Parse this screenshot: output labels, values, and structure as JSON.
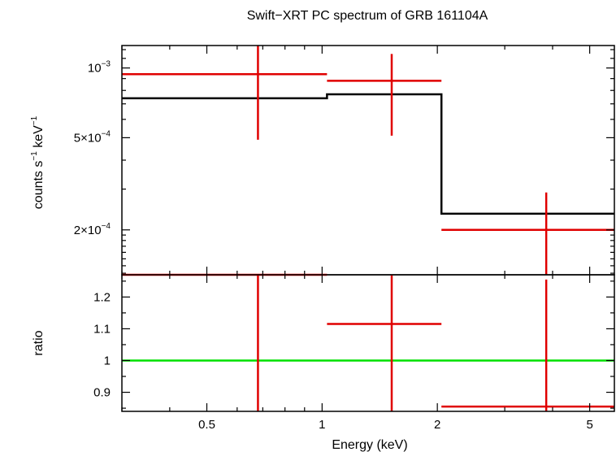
{
  "chart_data": {
    "title": "Swift−XRT PC spectrum of GRB 161104A",
    "x": {
      "label": "Energy (keV)",
      "scale": "log",
      "range": [
        0.3,
        5.8
      ],
      "ticks": [
        {
          "value": 0.5,
          "label": "0.5"
        },
        {
          "value": 1,
          "label": "1"
        },
        {
          "value": 2,
          "label": "2"
        },
        {
          "value": 5,
          "label": "5"
        }
      ]
    },
    "top_panel": {
      "type": "step + errorbar",
      "y_label": {
        "base": "counts s",
        "exp1": "−1",
        "mid": " keV",
        "exp2": "−1"
      },
      "y_scale": "log",
      "y_range": [
        0.000128,
        0.00125
      ],
      "y_ticks": [
        {
          "value": 0.001,
          "base": "10",
          "exp": "−3"
        },
        {
          "value": 0.0005,
          "base": "5×10",
          "exp": "−4"
        },
        {
          "value": 0.0002,
          "base": "2×10",
          "exp": "−4"
        }
      ],
      "data": [
        {
          "xlo": 0.3,
          "xhi": 1.03,
          "x": 0.68,
          "y": 0.00094,
          "ylo": 0.00049,
          "yhi": 0.00125
        },
        {
          "xlo": 1.03,
          "xhi": 2.05,
          "x": 1.52,
          "y": 0.00088,
          "ylo": 0.00051,
          "yhi": 0.00115
        },
        {
          "xlo": 2.05,
          "xhi": 5.8,
          "x": 3.85,
          "y": 0.0002,
          "ylo": 0.000128,
          "yhi": 0.00029
        }
      ],
      "model": [
        {
          "xlo": 0.3,
          "xhi": 1.03,
          "y": 0.00074
        },
        {
          "xlo": 1.03,
          "xhi": 2.05,
          "y": 0.00077
        },
        {
          "xlo": 2.05,
          "xhi": 5.8,
          "y": 0.000235
        }
      ]
    },
    "bottom_panel": {
      "type": "errorbar",
      "y_label": "ratio",
      "y_range": [
        0.84,
        1.27
      ],
      "y_ticks": [
        {
          "value": 0.9,
          "label": "0.9"
        },
        {
          "value": 1.0,
          "label": "1"
        },
        {
          "value": 1.1,
          "label": "1.1"
        },
        {
          "value": 1.2,
          "label": "1.2"
        }
      ],
      "reference_line": 1.0,
      "data": [
        {
          "xlo": 0.3,
          "xhi": 1.03,
          "x": 0.68,
          "y": 1.27,
          "ylo": 0.84,
          "yhi": 1.27
        },
        {
          "xlo": 1.03,
          "xhi": 2.05,
          "x": 1.52,
          "y": 1.115,
          "ylo": 0.84,
          "yhi": 1.27
        },
        {
          "xlo": 2.05,
          "xhi": 5.8,
          "x": 3.85,
          "y": 0.855,
          "ylo": 0.84,
          "yhi": 1.255
        }
      ]
    },
    "colors": {
      "data": "#e00000",
      "model": "#000000",
      "reference": "#00e000",
      "frame": "#000000"
    }
  }
}
